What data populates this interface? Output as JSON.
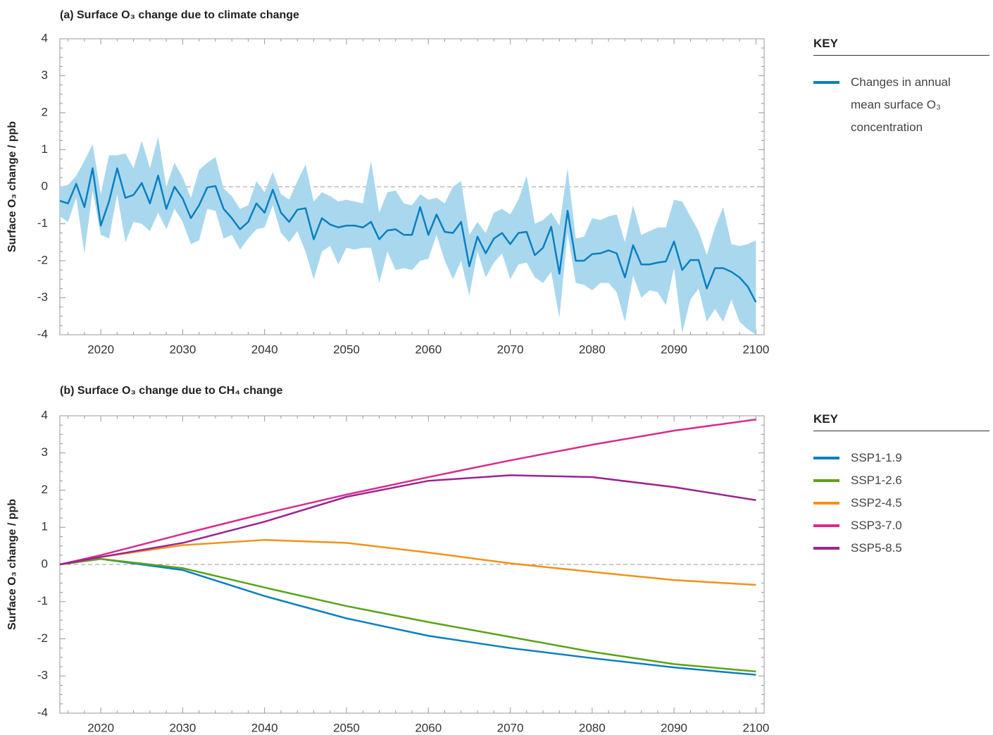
{
  "chart_data": [
    {
      "type": "line",
      "title": "(a) Surface O₃ change due to climate change",
      "y_label": "Surface O₃ change / ppb",
      "legend_title": "KEY",
      "xlim": [
        2015,
        2101
      ],
      "ylim": [
        -4,
        4
      ],
      "xticks": [
        2020,
        2030,
        2040,
        2050,
        2060,
        2070,
        2080,
        2090,
        2100
      ],
      "yticks": [
        -4,
        -3,
        -2,
        -1,
        0,
        1,
        2,
        3,
        4
      ],
      "hline": 0,
      "x": [
        2015,
        2016,
        2017,
        2018,
        2019,
        2020,
        2021,
        2022,
        2023,
        2024,
        2025,
        2026,
        2027,
        2028,
        2029,
        2030,
        2031,
        2032,
        2033,
        2034,
        2035,
        2036,
        2037,
        2038,
        2039,
        2040,
        2041,
        2042,
        2043,
        2044,
        2045,
        2046,
        2047,
        2048,
        2049,
        2050,
        2051,
        2052,
        2053,
        2054,
        2055,
        2056,
        2057,
        2058,
        2059,
        2060,
        2061,
        2062,
        2063,
        2064,
        2065,
        2066,
        2067,
        2068,
        2069,
        2070,
        2071,
        2072,
        2073,
        2074,
        2075,
        2076,
        2077,
        2078,
        2079,
        2080,
        2081,
        2082,
        2083,
        2084,
        2085,
        2086,
        2087,
        2088,
        2089,
        2090,
        2091,
        2092,
        2093,
        2094,
        2095,
        2096,
        2097,
        2098,
        2099,
        2100
      ],
      "band": {
        "color": "#a9d8ee",
        "high": [
          0.0,
          0.05,
          0.3,
          0.7,
          1.15,
          -0.2,
          0.85,
          0.85,
          0.9,
          0.5,
          1.25,
          0.5,
          1.35,
          0.0,
          0.65,
          0.25,
          -0.3,
          0.45,
          0.65,
          0.8,
          -0.05,
          -0.25,
          -0.6,
          -0.5,
          0.15,
          -0.15,
          0.4,
          -0.2,
          -0.35,
          0.15,
          0.6,
          -0.4,
          -0.15,
          -0.25,
          -0.4,
          -0.35,
          -0.4,
          -0.45,
          0.7,
          -0.7,
          -0.15,
          -0.1,
          -0.45,
          -0.5,
          -0.2,
          -0.35,
          -0.3,
          -0.45,
          0.0,
          0.15,
          -1.3,
          -0.95,
          -1.25,
          -0.7,
          -0.6,
          -0.75,
          -0.35,
          0.3,
          -1.0,
          -0.9,
          -0.7,
          -1.05,
          0.5,
          -1.4,
          -1.35,
          -0.85,
          -0.9,
          -0.8,
          -0.75,
          -1.5,
          -0.5,
          -1.3,
          -1.2,
          -1.1,
          -1.1,
          -0.35,
          -0.4,
          -0.8,
          -1.2,
          -1.85,
          -1.1,
          -0.55,
          -1.55,
          -1.6,
          -1.55,
          -1.45
        ],
        "low": [
          -0.8,
          -0.95,
          -0.3,
          -1.8,
          -0.1,
          -1.3,
          -1.4,
          -0.2,
          -1.5,
          -0.95,
          -1.0,
          -1.2,
          -0.7,
          -1.15,
          -0.6,
          -0.95,
          -1.55,
          -1.45,
          -0.6,
          -0.65,
          -1.4,
          -1.3,
          -1.7,
          -1.4,
          -1.15,
          -1.1,
          -0.5,
          -1.25,
          -1.5,
          -1.2,
          -1.75,
          -2.5,
          -1.75,
          -1.6,
          -2.1,
          -1.65,
          -1.7,
          -1.65,
          -1.65,
          -2.6,
          -1.75,
          -2.25,
          -2.2,
          -2.25,
          -2.0,
          -1.95,
          -1.3,
          -2.0,
          -2.5,
          -2.0,
          -2.95,
          -1.75,
          -2.45,
          -2.05,
          -1.8,
          -2.5,
          -2.1,
          -2.05,
          -2.45,
          -2.6,
          -2.3,
          -3.55,
          -1.25,
          -2.6,
          -2.65,
          -2.8,
          -2.6,
          -2.6,
          -2.85,
          -3.65,
          -2.4,
          -3.0,
          -2.8,
          -2.85,
          -3.2,
          -2.2,
          -3.95,
          -3.05,
          -2.75,
          -3.65,
          -3.3,
          -3.65,
          -3.05,
          -3.65,
          -3.85,
          -4.0
        ]
      },
      "series": [
        {
          "name": "Changes in annual mean surface O₃ concentration",
          "color": "#0b7fc0",
          "values": [
            -0.38,
            -0.45,
            0.08,
            -0.55,
            0.5,
            -1.05,
            -0.4,
            0.5,
            -0.3,
            -0.22,
            0.1,
            -0.45,
            0.3,
            -0.6,
            0.0,
            -0.32,
            -0.85,
            -0.5,
            -0.02,
            0.02,
            -0.6,
            -0.85,
            -1.15,
            -0.95,
            -0.45,
            -0.7,
            -0.08,
            -0.7,
            -0.95,
            -0.62,
            -0.58,
            -1.42,
            -0.85,
            -1.02,
            -1.1,
            -1.05,
            -1.05,
            -1.1,
            -0.95,
            -1.42,
            -1.18,
            -1.15,
            -1.3,
            -1.3,
            -0.55,
            -1.3,
            -0.75,
            -1.22,
            -1.25,
            -0.95,
            -2.15,
            -1.35,
            -1.8,
            -1.4,
            -1.25,
            -1.55,
            -1.25,
            -1.22,
            -1.85,
            -1.65,
            -1.08,
            -2.35,
            -0.65,
            -2.0,
            -2.0,
            -1.82,
            -1.8,
            -1.72,
            -1.8,
            -2.45,
            -1.58,
            -2.1,
            -2.1,
            -2.05,
            -2.02,
            -1.48,
            -2.25,
            -1.98,
            -1.98,
            -2.75,
            -2.2,
            -2.2,
            -2.3,
            -2.45,
            -2.7,
            -3.12
          ]
        }
      ]
    },
    {
      "type": "line",
      "title": "(b) Surface O₃ change due to CH₄ change",
      "y_label": "Surface O₃ change / ppb",
      "legend_title": "KEY",
      "xlim": [
        2015,
        2101
      ],
      "ylim": [
        -4,
        4
      ],
      "xticks": [
        2020,
        2030,
        2040,
        2050,
        2060,
        2070,
        2080,
        2090,
        2100
      ],
      "yticks": [
        -4,
        -3,
        -2,
        -1,
        0,
        1,
        2,
        3,
        4
      ],
      "hline": 0,
      "x": [
        2015,
        2020,
        2030,
        2040,
        2050,
        2060,
        2070,
        2080,
        2090,
        2100
      ],
      "series": [
        {
          "name": "SSP1-1.9",
          "color": "#0b7fc0",
          "values": [
            0,
            0.15,
            -0.15,
            -0.85,
            -1.45,
            -1.92,
            -2.25,
            -2.52,
            -2.77,
            -2.97
          ]
        },
        {
          "name": "SSP1-2.6",
          "color": "#5ca318",
          "values": [
            0,
            0.15,
            -0.1,
            -0.62,
            -1.12,
            -1.55,
            -1.95,
            -2.35,
            -2.68,
            -2.88
          ]
        },
        {
          "name": "SSP2-4.5",
          "color": "#f0921c",
          "values": [
            0,
            0.2,
            0.52,
            0.66,
            0.58,
            0.32,
            0.03,
            -0.2,
            -0.42,
            -0.55
          ]
        },
        {
          "name": "SSP3-7.0",
          "color": "#d82c8c",
          "values": [
            0,
            0.25,
            0.82,
            1.37,
            1.88,
            2.35,
            2.8,
            3.22,
            3.6,
            3.9
          ]
        },
        {
          "name": "SSP5-8.5",
          "color": "#9b2490",
          "values": [
            0,
            0.2,
            0.58,
            1.15,
            1.82,
            2.25,
            2.4,
            2.35,
            2.08,
            1.73
          ]
        }
      ]
    }
  ]
}
